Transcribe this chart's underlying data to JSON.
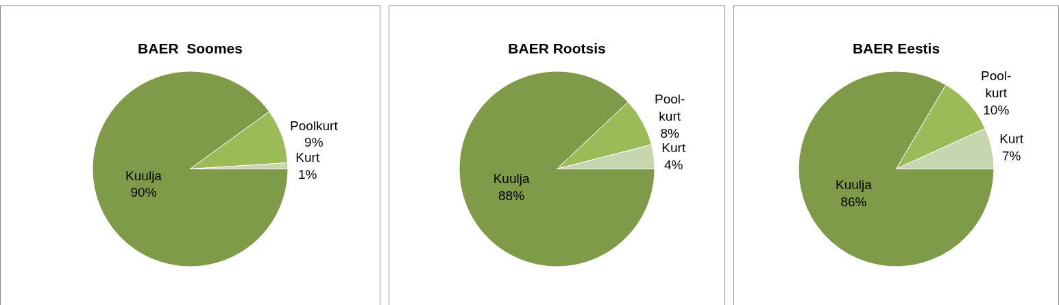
{
  "chart_data": [
    {
      "type": "pie",
      "title": "BAER  Soomes",
      "categories": [
        "Kuulja",
        "Poolkurt",
        "Kurt"
      ],
      "values": [
        90,
        9,
        1
      ],
      "value_labels": [
        "90%",
        "9%",
        "1%"
      ],
      "colors": [
        "#7f9a48",
        "#9bbb59",
        "#c6d6ae"
      ],
      "legend": false
    },
    {
      "type": "pie",
      "title": "BAER Rootsis",
      "categories": [
        "Kuulja",
        "Pool-kurt",
        "Kurt"
      ],
      "values": [
        88,
        8,
        4
      ],
      "value_labels": [
        "88%",
        "8%",
        "4%"
      ],
      "colors": [
        "#7f9a48",
        "#9bbb59",
        "#c6d6ae"
      ],
      "legend": false
    },
    {
      "type": "pie",
      "title": "BAER Eestis",
      "categories": [
        "Kuulja",
        "Pool-kurt",
        "Kurt"
      ],
      "values": [
        86,
        10,
        7
      ],
      "value_labels": [
        "86%",
        "10%",
        "7%"
      ],
      "colors": [
        "#7f9a48",
        "#9bbb59",
        "#c6d6ae"
      ],
      "legend": false
    }
  ]
}
